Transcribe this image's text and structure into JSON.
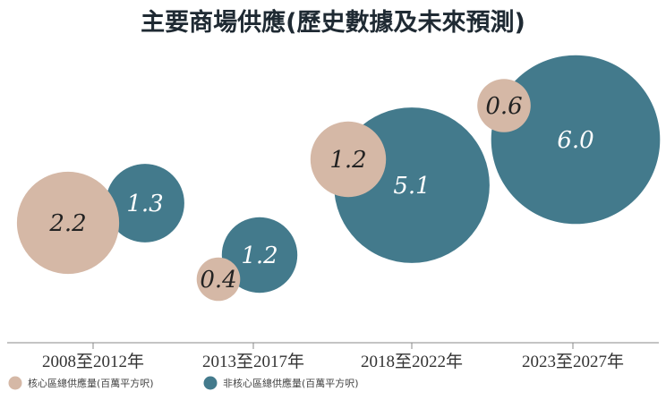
{
  "chart_data": {
    "type": "bubble",
    "title": "主要商場供應(歷史數據及未來預測)",
    "categories": [
      "2008至2012年",
      "2013至2017年",
      "2018至2022年",
      "2023至2027年"
    ],
    "series": [
      {
        "name": "核心區總供應量(百萬平方呎)",
        "color": "#d5b8a6",
        "values": [
          2.2,
          0.4,
          1.2,
          0.6
        ],
        "labels": [
          "2.2",
          "0.4",
          "1.2",
          "0.6"
        ]
      },
      {
        "name": "非核心區總供應量(百萬平方呎)",
        "color": "#437a8c",
        "values": [
          1.3,
          1.2,
          5.1,
          6.0
        ],
        "labels": [
          "1.3",
          "1.2",
          "5.1",
          "6.0"
        ]
      }
    ],
    "grid": false,
    "legend": "bottom-left"
  }
}
